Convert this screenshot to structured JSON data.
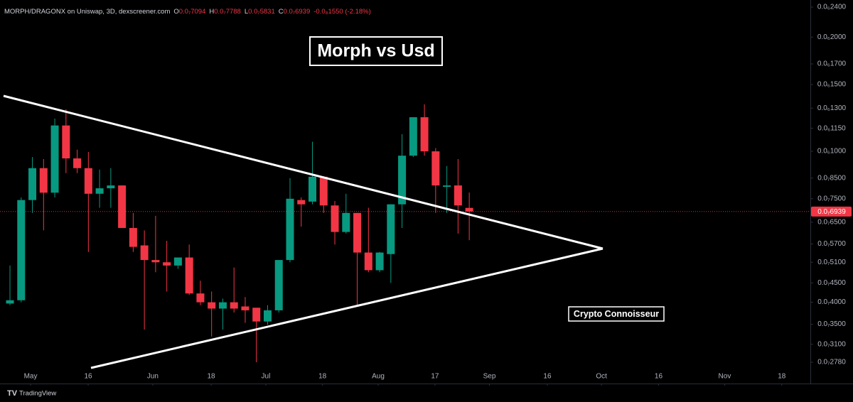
{
  "chart_data": {
    "type": "candlestick",
    "title": "Morph vs Usd",
    "annotation": "Crypto Connoisseur",
    "header": {
      "symbol": "MORPH/DRAGONX on Uniswap, 3D, dexscreener.com",
      "fields": [
        {
          "label": "O",
          "value": "0.0₇7094"
        },
        {
          "label": "H",
          "value": "0.0₇7788"
        },
        {
          "label": "L",
          "value": "0.0₇5831"
        },
        {
          "label": "C",
          "value": "0.0₇6939"
        }
      ],
      "change": "-0.0₈1550 (-2.18%)"
    },
    "last_price_label": "0.0₇6939",
    "brand": "TradingView",
    "log_scale": true,
    "up_color": "#089981",
    "down_color": "#f23645",
    "x": [
      0,
      1,
      2,
      3,
      4,
      5,
      6,
      7,
      8,
      9,
      10,
      11,
      12,
      13,
      14,
      15,
      16,
      17,
      18,
      19,
      20,
      21,
      22,
      23,
      24,
      25,
      26,
      27,
      28,
      29,
      30,
      31,
      32,
      33,
      34,
      35,
      36,
      37,
      38,
      39,
      40,
      41
    ],
    "open": [
      3.97e-08,
      4.05e-08,
      7.44e-08,
      9.03e-08,
      7.78e-08,
      1.17e-07,
      9.58e-08,
      9.03e-08,
      7.73e-08,
      7.99e-08,
      8.13e-08,
      6.28e-08,
      5.65e-08,
      5.17e-08,
      5.1e-08,
      5e-08,
      5.25e-08,
      4.22e-08,
      4e-08,
      3.85e-08,
      4e-08,
      3.9e-08,
      3.87e-08,
      3.56e-08,
      3.81e-08,
      5.17e-08,
      7.44e-08,
      7.37e-08,
      8.57e-08,
      7.2e-08,
      6.13e-08,
      6.88e-08,
      5.41e-08,
      4.86e-08,
      5.36e-08,
      7.25e-08,
      9.74e-08,
      1.23e-07,
      1e-07,
      8.06e-08,
      8.13e-08,
      7.094e-08
    ],
    "high": [
      5e-08,
      7.56e-08,
      9.66e-08,
      9.54e-08,
      1.22e-07,
      1.29e-07,
      1.01e-07,
      9.96e-08,
      8.95e-08,
      9.03e-08,
      8.13e-08,
      6.88e-08,
      6.19e-08,
      6.76e-08,
      5.81e-08,
      5.25e-08,
      5.68e-08,
      4.56e-08,
      4.27e-08,
      4.09e-08,
      4.94e-08,
      4.13e-08,
      3.85e-08,
      3.93e-08,
      5.17e-08,
      8.5e-08,
      7.56e-08,
      1.06e-07,
      8.6e-08,
      7.4e-08,
      7.73e-08,
      6.88e-08,
      7.1e-08,
      5.43e-08,
      7.25e-08,
      1.11e-07,
      1.23e-07,
      1.33e-07,
      1.02e-07,
      9.15e-08,
      9.54e-08,
      7.788e-08
    ],
    "low": [
      3.93e-08,
      4e-08,
      6.88e-08,
      6.19e-08,
      7.56e-08,
      8.76e-08,
      8.76e-08,
      5.43e-08,
      7.1e-08,
      7.1e-08,
      6.28e-08,
      5.43e-08,
      3.39e-08,
      4.8e-08,
      4.27e-08,
      4.9e-08,
      4.18e-08,
      3.93e-08,
      3.25e-08,
      3.39e-08,
      3.76e-08,
      3.53e-08,
      2.78e-08,
      3.49e-08,
      3.76e-08,
      5.1e-08,
      6.33e-08,
      7.25e-08,
      6.88e-08,
      5.68e-08,
      6.07e-08,
      3.93e-08,
      4.8e-08,
      4.8e-08,
      4.5e-08,
      6.28e-08,
      9.66e-08,
      9.74e-08,
      6.88e-08,
      6.88e-08,
      6.07e-08,
      5.831e-08
    ],
    "close": [
      4.05e-08,
      7.44e-08,
      9.03e-08,
      7.78e-08,
      1.17e-07,
      9.58e-08,
      9.03e-08,
      7.73e-08,
      7.99e-08,
      8.13e-08,
      6.28e-08,
      5.6e-08,
      5.17e-08,
      5.1e-08,
      5e-08,
      5.25e-08,
      4.22e-08,
      4e-08,
      3.85e-08,
      4e-08,
      3.85e-08,
      3.81e-08,
      3.56e-08,
      3.81e-08,
      5.17e-08,
      7.5e-08,
      7.25e-08,
      8.57e-08,
      7.2e-08,
      6.13e-08,
      6.88e-08,
      5.41e-08,
      4.86e-08,
      5.41e-08,
      7.25e-08,
      9.74e-08,
      1.23e-07,
      1e-07,
      8.13e-08,
      8.13e-08,
      7.2e-08,
      6.939e-08
    ],
    "xlim": [
      -0.89,
      71.45
    ],
    "xticks": [
      {
        "value": 1.84,
        "label": "May"
      },
      {
        "value": 6.98,
        "label": "16"
      },
      {
        "value": 12.75,
        "label": "Jun"
      },
      {
        "value": 17.96,
        "label": "18"
      },
      {
        "value": 22.84,
        "label": "Jul"
      },
      {
        "value": 27.9,
        "label": "18"
      },
      {
        "value": 32.87,
        "label": "Aug"
      },
      {
        "value": 37.94,
        "label": "17"
      },
      {
        "value": 42.8,
        "label": "Sep"
      },
      {
        "value": 47.97,
        "label": "16"
      },
      {
        "value": 52.8,
        "label": "Oct"
      },
      {
        "value": 57.9,
        "label": "16"
      },
      {
        "value": 63.8,
        "label": "Nov"
      },
      {
        "value": 68.9,
        "label": "18"
      }
    ],
    "ylim": [
      2.78e-08,
      2.4e-07
    ],
    "yticks": [
      {
        "value": 2.4e-07,
        "label": "0.0₆2400"
      },
      {
        "value": 2e-07,
        "label": "0.0₆2000"
      },
      {
        "value": 1.7e-07,
        "label": "0.0₆1700"
      },
      {
        "value": 1.5e-07,
        "label": "0.0₆1500"
      },
      {
        "value": 1.3e-07,
        "label": "0.0₆1300"
      },
      {
        "value": 1.15e-07,
        "label": "0.0₆1150"
      },
      {
        "value": 1e-07,
        "label": "0.0₆1000"
      },
      {
        "value": 8.5e-08,
        "label": "0.0₇8500"
      },
      {
        "value": 7.5e-08,
        "label": "0.0₇7500"
      },
      {
        "value": 6.5e-08,
        "label": "0.0₇6500"
      },
      {
        "value": 5.7e-08,
        "label": "0.0₇5700"
      },
      {
        "value": 5.1e-08,
        "label": "0.0₇5100"
      },
      {
        "value": 4.5e-08,
        "label": "0.0₇4500"
      },
      {
        "value": 4e-08,
        "label": "0.0₇4000"
      },
      {
        "value": 3.5e-08,
        "label": "0.0₇3500"
      },
      {
        "value": 3.1e-08,
        "label": "0.0₇3100"
      },
      {
        "value": 2.78e-08,
        "label": "0.0₇2780"
      }
    ]
  }
}
